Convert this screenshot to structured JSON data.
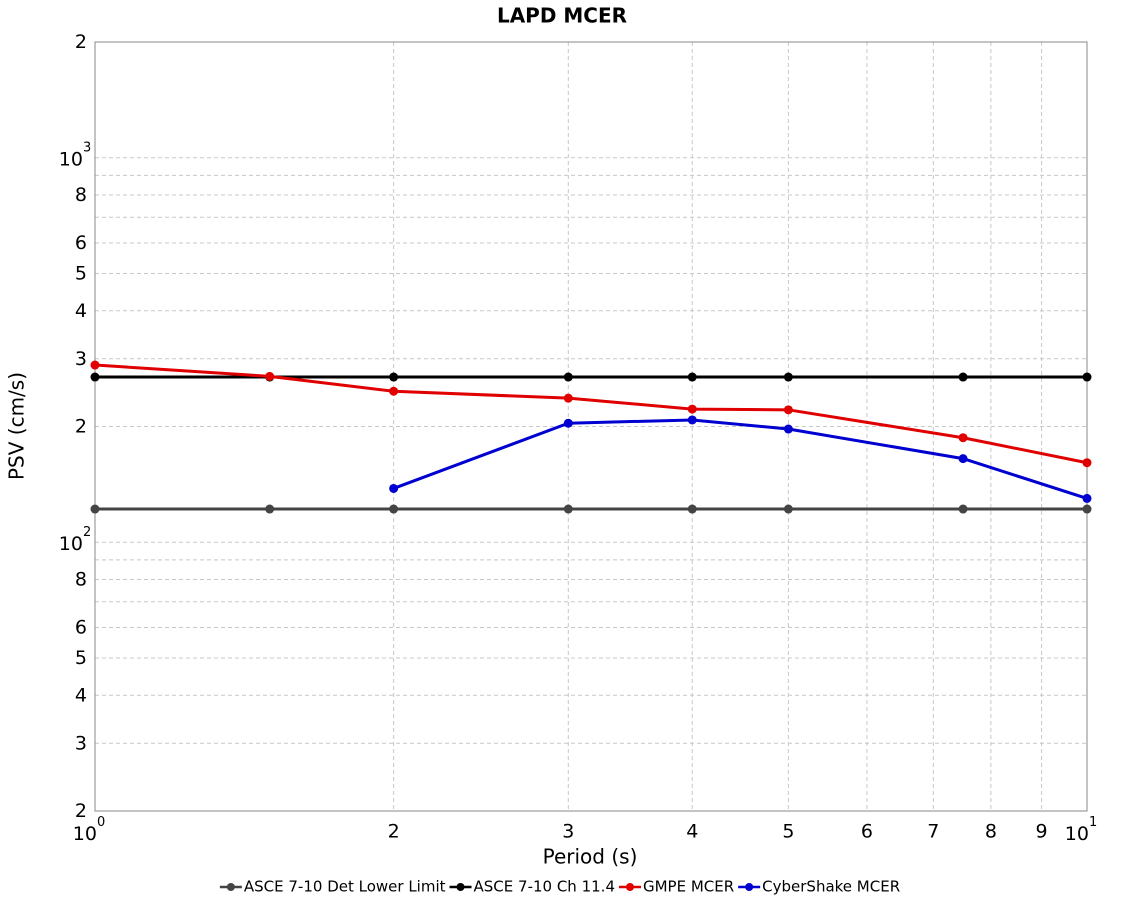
{
  "chart_data": {
    "type": "line",
    "title": "LAPD MCER",
    "x_label": "Period (s)",
    "y_label": "PSV (cm/s)",
    "x_log": true,
    "y_log": true,
    "grid": true,
    "xlim": [
      1,
      10
    ],
    "ylim": [
      20,
      2000
    ],
    "xticks": [
      {
        "value": 1,
        "label": "10",
        "exponent": "0"
      },
      2,
      3,
      4,
      5,
      6,
      7,
      8,
      9,
      {
        "value": 10,
        "label": "10",
        "exponent": "1"
      }
    ],
    "yticks": [
      2,
      3,
      4,
      5,
      6,
      8,
      {
        "value": 20,
        "label": "2"
      },
      {
        "value": 30,
        "label": "3"
      },
      {
        "value": 40,
        "label": "4"
      },
      {
        "value": 50,
        "label": "5"
      },
      {
        "value": 60,
        "label": "6"
      },
      {
        "value": 80,
        "label": "8"
      },
      {
        "value": 100,
        "label": "10",
        "exponent": "2"
      },
      {
        "value": 200,
        "label": "2"
      },
      {
        "value": 300,
        "label": "3"
      },
      {
        "value": 400,
        "label": "4"
      },
      {
        "value": 500,
        "label": "5"
      },
      {
        "value": 600,
        "label": "6"
      },
      {
        "value": 800,
        "label": "8"
      },
      {
        "value": 1000,
        "label": "10",
        "exponent": "3"
      },
      {
        "value": 2000,
        "label": "2"
      }
    ],
    "minor_yticks": [
      70,
      90,
      700,
      900
    ],
    "x": [
      1,
      1.5,
      2,
      3,
      4,
      5,
      7.5,
      10
    ],
    "series": [
      {
        "name": "ASCE 7-10 Det Lower Limit",
        "color": "#444444",
        "values": [
          122,
          122,
          122,
          122,
          122,
          122,
          122,
          122
        ]
      },
      {
        "name": "ASCE 7-10 Ch 11.4",
        "color": "#000000",
        "values": [
          269,
          269,
          269,
          269,
          269,
          269,
          269,
          269
        ]
      },
      {
        "name": "GMPE MCER",
        "color": "#e00000",
        "values": [
          289,
          270,
          247,
          237,
          222,
          221,
          187,
          161
        ]
      },
      {
        "name": "CyberShake MCER",
        "color": "#0000d0",
        "values": [
          null,
          null,
          138,
          204,
          208,
          197,
          165,
          130
        ]
      }
    ]
  }
}
